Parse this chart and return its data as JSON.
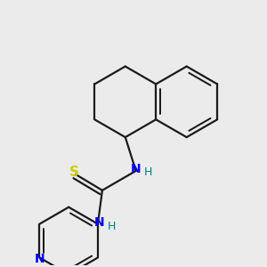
{
  "bg_color": "#ebebeb",
  "bond_color": "#1a1a1a",
  "N_color": "#0000ff",
  "S_color": "#cccc00",
  "H_color": "#008080",
  "line_width": 1.6,
  "fig_size": [
    3.0,
    3.0
  ],
  "dpi": 100,
  "xlim": [
    0,
    300
  ],
  "ylim": [
    0,
    300
  ]
}
